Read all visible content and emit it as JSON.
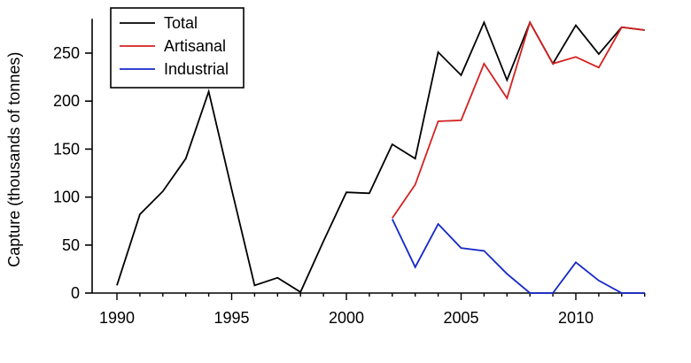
{
  "chart_data": {
    "type": "line",
    "title": "",
    "xlabel": "",
    "ylabel": "Capture (thousands of tonnes)",
    "xlim": [
      1989.8,
      2013.0
    ],
    "ylim": [
      0,
      282
    ],
    "xticks": [
      1990,
      1995,
      2000,
      2005,
      2010
    ],
    "yticks": [
      0,
      50,
      100,
      150,
      200,
      250
    ],
    "grid": false,
    "legend_position": "top-left",
    "series": [
      {
        "name": "Total",
        "color": "#000000",
        "points": [
          [
            1990,
            8
          ],
          [
            1991,
            82
          ],
          [
            1992,
            106
          ],
          [
            1993,
            140
          ],
          [
            1994,
            210
          ],
          [
            1995,
            108
          ],
          [
            1996,
            8
          ],
          [
            1997,
            16
          ],
          [
            1998,
            1
          ],
          [
            1999,
            54
          ],
          [
            2000,
            105
          ],
          [
            2001,
            104
          ],
          [
            2002,
            155
          ],
          [
            2003,
            140
          ],
          [
            2004,
            251
          ],
          [
            2005,
            227
          ],
          [
            2006,
            282
          ],
          [
            2007,
            222
          ],
          [
            2008,
            282
          ],
          [
            2009,
            239
          ],
          [
            2010,
            279
          ],
          [
            2011,
            249
          ],
          [
            2012,
            277
          ],
          [
            2013,
            274
          ]
        ]
      },
      {
        "name": "Artisanal",
        "color": "#d42020",
        "points": [
          [
            2002,
            78
          ],
          [
            2003,
            113
          ],
          [
            2004,
            179
          ],
          [
            2005,
            180
          ],
          [
            2006,
            239
          ],
          [
            2007,
            203
          ],
          [
            2008,
            282
          ],
          [
            2009,
            239
          ],
          [
            2010,
            246
          ],
          [
            2011,
            235
          ],
          [
            2012,
            277
          ],
          [
            2013,
            274
          ]
        ]
      },
      {
        "name": "Industrial",
        "color": "#1428c8",
        "points": [
          [
            2002,
            77
          ],
          [
            2003,
            27
          ],
          [
            2004,
            72
          ],
          [
            2005,
            47
          ],
          [
            2006,
            44
          ],
          [
            2007,
            20
          ],
          [
            2008,
            0
          ],
          [
            2009,
            0
          ],
          [
            2010,
            32
          ],
          [
            2011,
            13
          ],
          [
            2012,
            0
          ],
          [
            2013,
            0
          ]
        ]
      }
    ]
  }
}
